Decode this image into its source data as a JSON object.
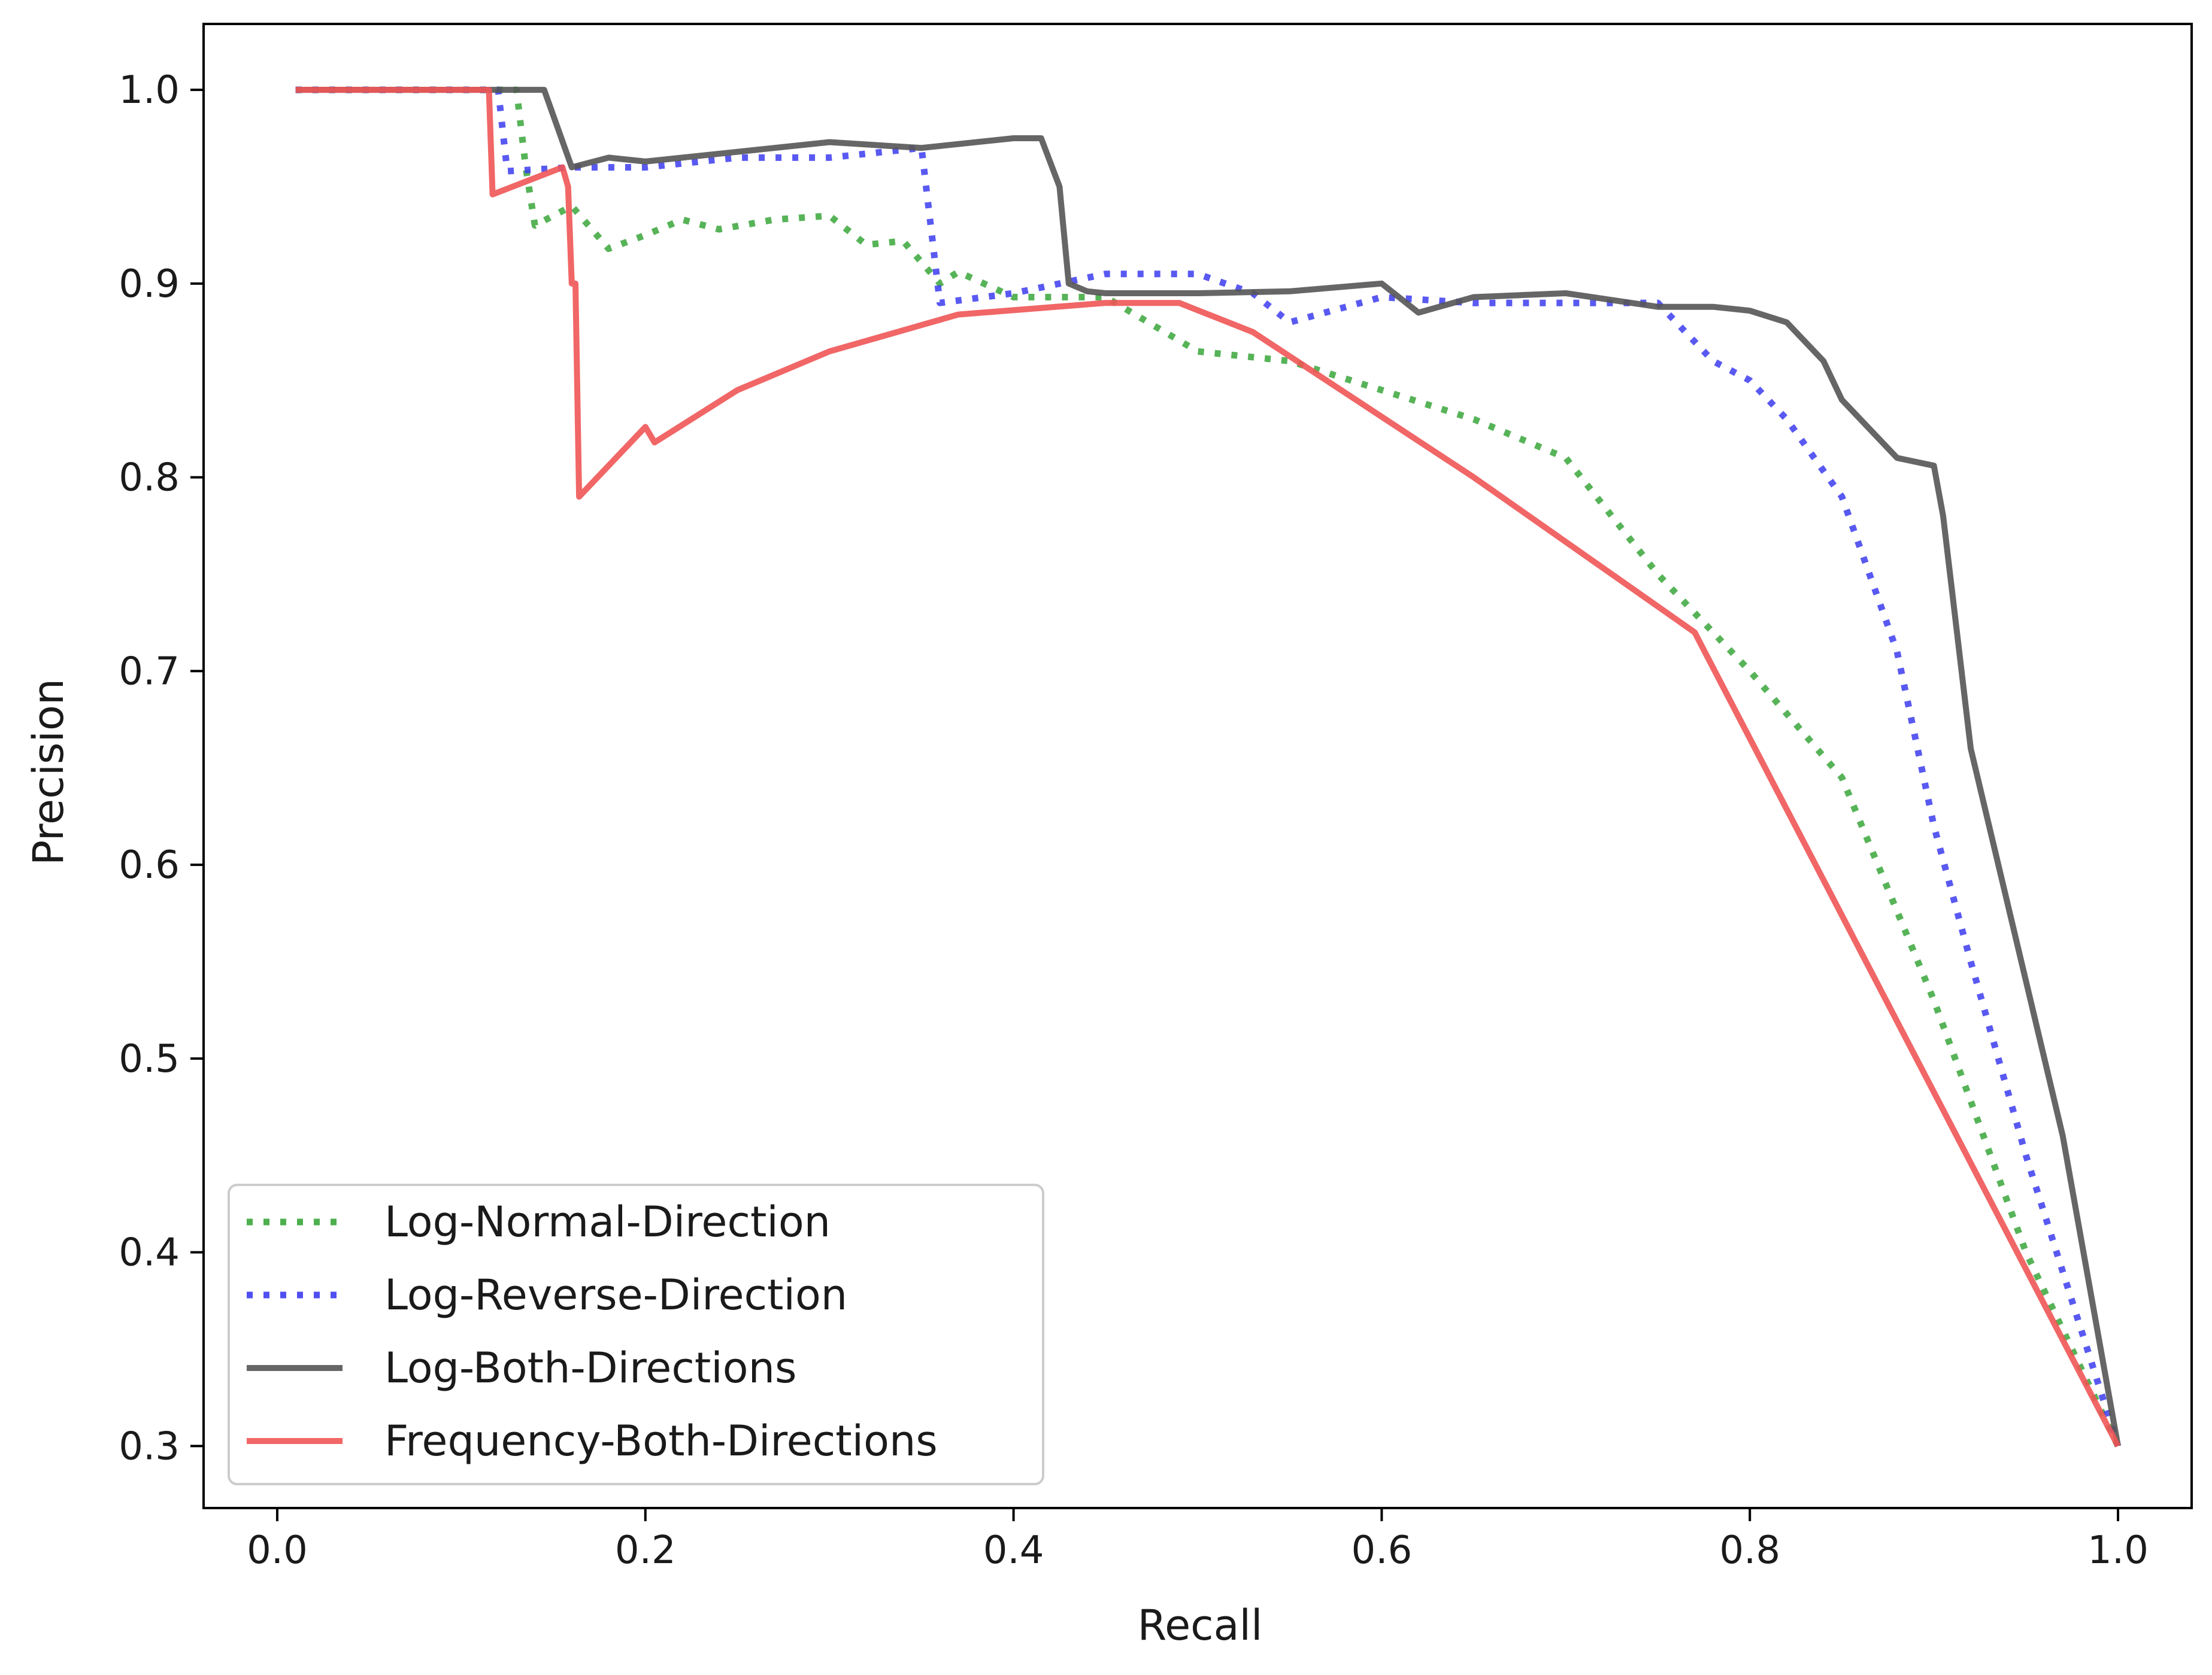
{
  "chart_data": {
    "type": "line",
    "title": "",
    "xlabel": "Recall",
    "ylabel": "Precision",
    "xlim": [
      -0.04,
      1.04
    ],
    "ylim": [
      0.268,
      1.034
    ],
    "xticks": [
      0.0,
      0.2,
      0.4,
      0.6,
      0.8,
      1.0
    ],
    "yticks": [
      0.3,
      0.4,
      0.5,
      0.6,
      0.7,
      0.8,
      0.9,
      1.0
    ],
    "xtick_labels": [
      "0.0",
      "0.2",
      "0.4",
      "0.6",
      "0.8",
      "1.0"
    ],
    "ytick_labels": [
      "0.3",
      "0.4",
      "0.5",
      "0.6",
      "0.7",
      "0.8",
      "0.9",
      "1.0"
    ],
    "grid": false,
    "legend_position": "lower-left",
    "series": [
      {
        "name": "Log-Normal-Direction",
        "color": "#3aa63a",
        "style": "dotted",
        "x": [
          0.01,
          0.13,
          0.135,
          0.14,
          0.16,
          0.18,
          0.2,
          0.22,
          0.24,
          0.27,
          0.3,
          0.32,
          0.34,
          0.36,
          0.37,
          0.4,
          0.45,
          0.5,
          0.55,
          0.6,
          0.65,
          0.7,
          0.75,
          0.8,
          0.85,
          0.9,
          0.95,
          1.0
        ],
        "y": [
          1.0,
          1.0,
          0.96,
          0.93,
          0.94,
          0.918,
          0.925,
          0.933,
          0.928,
          0.933,
          0.935,
          0.92,
          0.922,
          0.9,
          0.906,
          0.893,
          0.893,
          0.865,
          0.86,
          0.845,
          0.83,
          0.81,
          0.75,
          0.7,
          0.645,
          0.53,
          0.4,
          0.3
        ]
      },
      {
        "name": "Log-Reverse-Direction",
        "color": "#3c3cf0",
        "style": "dotted",
        "x": [
          0.01,
          0.12,
          0.125,
          0.16,
          0.2,
          0.25,
          0.3,
          0.35,
          0.36,
          0.4,
          0.45,
          0.5,
          0.53,
          0.55,
          0.6,
          0.65,
          0.7,
          0.75,
          0.78,
          0.8,
          0.82,
          0.85,
          0.88,
          0.9,
          0.92,
          0.95,
          1.0
        ],
        "y": [
          1.0,
          1.0,
          0.958,
          0.96,
          0.96,
          0.965,
          0.965,
          0.97,
          0.89,
          0.895,
          0.905,
          0.905,
          0.895,
          0.88,
          0.893,
          0.89,
          0.89,
          0.89,
          0.86,
          0.85,
          0.83,
          0.79,
          0.71,
          0.62,
          0.55,
          0.45,
          0.3
        ]
      },
      {
        "name": "Log-Both-Directions",
        "color": "#555555",
        "style": "solid",
        "x": [
          0.01,
          0.145,
          0.16,
          0.18,
          0.2,
          0.25,
          0.3,
          0.35,
          0.4,
          0.415,
          0.425,
          0.43,
          0.44,
          0.45,
          0.47,
          0.5,
          0.55,
          0.6,
          0.62,
          0.65,
          0.7,
          0.75,
          0.78,
          0.8,
          0.82,
          0.84,
          0.85,
          0.88,
          0.9,
          0.905,
          0.91,
          0.92,
          0.94,
          0.97,
          1.0
        ],
        "y": [
          1.0,
          1.0,
          0.96,
          0.965,
          0.963,
          0.968,
          0.973,
          0.97,
          0.975,
          0.975,
          0.95,
          0.9,
          0.896,
          0.895,
          0.895,
          0.895,
          0.896,
          0.9,
          0.885,
          0.893,
          0.895,
          0.888,
          0.888,
          0.886,
          0.88,
          0.86,
          0.84,
          0.81,
          0.806,
          0.78,
          0.74,
          0.66,
          0.58,
          0.46,
          0.3
        ]
      },
      {
        "name": "Frequency-Both-Directions",
        "color": "#f05555",
        "style": "solid",
        "x": [
          0.01,
          0.115,
          0.117,
          0.155,
          0.158,
          0.16,
          0.162,
          0.164,
          0.2,
          0.205,
          0.25,
          0.3,
          0.37,
          0.45,
          0.49,
          0.53,
          0.65,
          0.77,
          1.0
        ],
        "y": [
          1.0,
          1.0,
          0.946,
          0.96,
          0.95,
          0.9,
          0.9,
          0.79,
          0.826,
          0.818,
          0.845,
          0.865,
          0.884,
          0.89,
          0.89,
          0.875,
          0.8,
          0.72,
          0.3
        ]
      }
    ]
  }
}
